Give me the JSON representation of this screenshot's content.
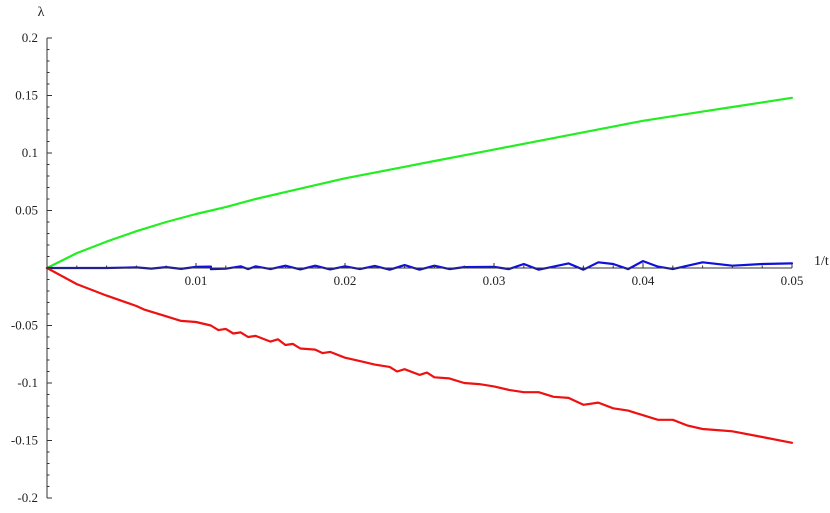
{
  "chart_data": {
    "type": "line",
    "title": "",
    "xlabel": "1/t",
    "ylabel": "λ",
    "xlim": [
      0,
      0.05
    ],
    "ylim": [
      -0.2,
      0.2
    ],
    "grid": false,
    "legend": "none",
    "x_ticks": [
      {
        "value": 0.01,
        "label": "0.01"
      },
      {
        "value": 0.02,
        "label": "0.02"
      },
      {
        "value": 0.03,
        "label": "0.03"
      },
      {
        "value": 0.04,
        "label": "0.04"
      },
      {
        "value": 0.05,
        "label": "0.05"
      }
    ],
    "y_ticks": [
      {
        "value": 0.2,
        "label": "0.2"
      },
      {
        "value": 0.15,
        "label": "0.15"
      },
      {
        "value": 0.1,
        "label": "0.1"
      },
      {
        "value": 0.05,
        "label": "0.05"
      },
      {
        "value": -0.05,
        "label": "-0.05"
      },
      {
        "value": -0.1,
        "label": "-0.1"
      },
      {
        "value": -0.15,
        "label": "-0.15"
      },
      {
        "value": -0.2,
        "label": "-0.2"
      }
    ],
    "series": [
      {
        "color": "#22ee22",
        "points": [
          [
            0,
            0
          ],
          [
            0.002,
            0.013
          ],
          [
            0.004,
            0.023
          ],
          [
            0.006,
            0.032
          ],
          [
            0.008,
            0.04
          ],
          [
            0.01,
            0.047
          ],
          [
            0.012,
            0.053
          ],
          [
            0.014,
            0.06
          ],
          [
            0.016,
            0.066
          ],
          [
            0.018,
            0.072
          ],
          [
            0.02,
            0.078
          ],
          [
            0.022,
            0.083
          ],
          [
            0.024,
            0.088
          ],
          [
            0.026,
            0.093
          ],
          [
            0.028,
            0.098
          ],
          [
            0.03,
            0.103
          ],
          [
            0.032,
            0.108
          ],
          [
            0.034,
            0.113
          ],
          [
            0.036,
            0.118
          ],
          [
            0.038,
            0.123
          ],
          [
            0.04,
            0.128
          ],
          [
            0.042,
            0.132
          ],
          [
            0.044,
            0.136
          ],
          [
            0.046,
            0.14
          ],
          [
            0.048,
            0.144
          ],
          [
            0.05,
            0.148
          ]
        ]
      },
      {
        "color": "#1010dd",
        "points": [
          [
            0,
            0
          ],
          [
            0.004,
            0.0
          ],
          [
            0.006,
            0.0005
          ],
          [
            0.007,
            -0.0005
          ],
          [
            0.008,
            0.0008
          ],
          [
            0.009,
            -0.0008
          ],
          [
            0.01,
            0.001
          ],
          [
            0.011,
            0.0012
          ],
          [
            0.011,
            -0.001
          ],
          [
            0.012,
            -0.0006
          ],
          [
            0.013,
            0.0015
          ],
          [
            0.0135,
            -0.001
          ],
          [
            0.014,
            0.0015
          ],
          [
            0.015,
            -0.001
          ],
          [
            0.016,
            0.002
          ],
          [
            0.017,
            -0.0012
          ],
          [
            0.018,
            0.002
          ],
          [
            0.019,
            -0.0012
          ],
          [
            0.02,
            0.0015
          ],
          [
            0.021,
            -0.001
          ],
          [
            0.022,
            0.0018
          ],
          [
            0.023,
            -0.0015
          ],
          [
            0.024,
            0.0025
          ],
          [
            0.025,
            -0.0015
          ],
          [
            0.026,
            0.002
          ],
          [
            0.027,
            -0.001
          ],
          [
            0.028,
            0.0008
          ],
          [
            0.03,
            0.001
          ],
          [
            0.031,
            -0.001
          ],
          [
            0.032,
            0.0035
          ],
          [
            0.033,
            -0.0015
          ],
          [
            0.035,
            0.004
          ],
          [
            0.036,
            -0.0015
          ],
          [
            0.037,
            0.005
          ],
          [
            0.038,
            0.0035
          ],
          [
            0.039,
            -0.001
          ],
          [
            0.04,
            0.006
          ],
          [
            0.041,
            0.0012
          ],
          [
            0.042,
            -0.001
          ],
          [
            0.044,
            0.005
          ],
          [
            0.046,
            0.002
          ],
          [
            0.048,
            0.0035
          ],
          [
            0.05,
            0.004
          ]
        ]
      },
      {
        "color": "#ee1111",
        "points": [
          [
            0,
            0
          ],
          [
            0.002,
            -0.014
          ],
          [
            0.004,
            -0.024
          ],
          [
            0.006,
            -0.033
          ],
          [
            0.0065,
            -0.036
          ],
          [
            0.008,
            -0.042
          ],
          [
            0.009,
            -0.046
          ],
          [
            0.01,
            -0.047
          ],
          [
            0.011,
            -0.05
          ],
          [
            0.0115,
            -0.054
          ],
          [
            0.012,
            -0.053
          ],
          [
            0.0125,
            -0.057
          ],
          [
            0.013,
            -0.056
          ],
          [
            0.0135,
            -0.06
          ],
          [
            0.014,
            -0.059
          ],
          [
            0.015,
            -0.064
          ],
          [
            0.0155,
            -0.062
          ],
          [
            0.016,
            -0.067
          ],
          [
            0.0165,
            -0.066
          ],
          [
            0.017,
            -0.07
          ],
          [
            0.018,
            -0.071
          ],
          [
            0.0185,
            -0.074
          ],
          [
            0.019,
            -0.073
          ],
          [
            0.02,
            -0.078
          ],
          [
            0.021,
            -0.081
          ],
          [
            0.022,
            -0.084
          ],
          [
            0.023,
            -0.086
          ],
          [
            0.0235,
            -0.09
          ],
          [
            0.024,
            -0.088
          ],
          [
            0.025,
            -0.093
          ],
          [
            0.0255,
            -0.091
          ],
          [
            0.026,
            -0.095
          ],
          [
            0.027,
            -0.096
          ],
          [
            0.028,
            -0.1
          ],
          [
            0.029,
            -0.101
          ],
          [
            0.03,
            -0.103
          ],
          [
            0.031,
            -0.106
          ],
          [
            0.032,
            -0.108
          ],
          [
            0.033,
            -0.108
          ],
          [
            0.034,
            -0.112
          ],
          [
            0.035,
            -0.113
          ],
          [
            0.036,
            -0.119
          ],
          [
            0.037,
            -0.117
          ],
          [
            0.038,
            -0.122
          ],
          [
            0.039,
            -0.124
          ],
          [
            0.04,
            -0.128
          ],
          [
            0.041,
            -0.132
          ],
          [
            0.042,
            -0.132
          ],
          [
            0.043,
            -0.137
          ],
          [
            0.044,
            -0.14
          ],
          [
            0.045,
            -0.141
          ],
          [
            0.046,
            -0.142
          ],
          [
            0.048,
            -0.147
          ],
          [
            0.05,
            -0.152
          ]
        ]
      }
    ]
  }
}
